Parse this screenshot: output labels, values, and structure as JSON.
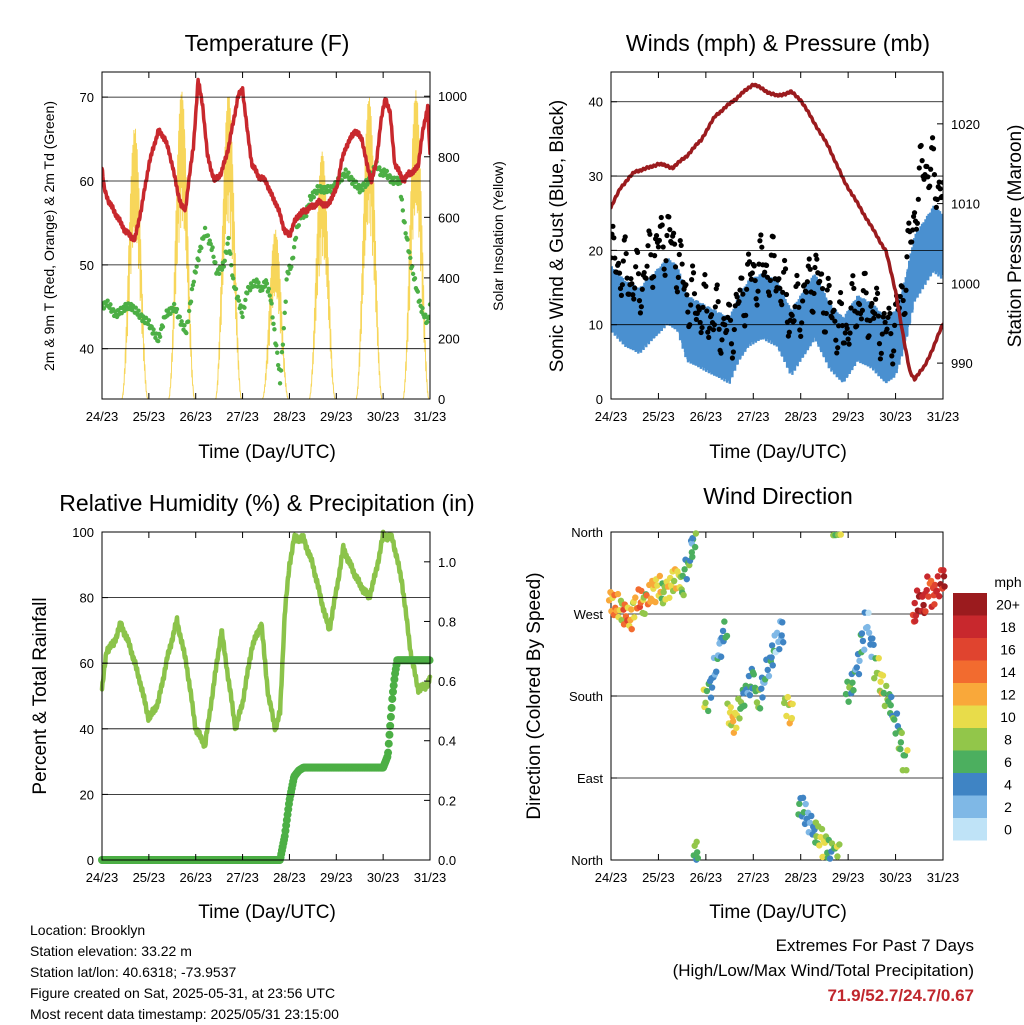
{
  "chart_data": [
    {
      "type": "line",
      "title": "Temperature (F)",
      "xlabel": "Time (Day/UTC)",
      "ylabel": "2m & 9m T (Red, Orange) & 2m Td (Green)",
      "y2label": "Solar Insolation (Yellow)",
      "x_ticks": [
        "24/23",
        "25/23",
        "26/23",
        "27/23",
        "28/23",
        "29/23",
        "30/23",
        "31/23"
      ],
      "xlim_days": [
        0,
        7
      ],
      "ylim": [
        34,
        73
      ],
      "y_ticks": [
        40,
        50,
        60,
        70
      ],
      "y2lim": [
        0,
        1080
      ],
      "y2_ticks": [
        0,
        200,
        400,
        600,
        800,
        1000
      ],
      "grid": "horizontal",
      "series": [
        {
          "name": "2m T",
          "color": "#c8282d",
          "x": [
            0,
            0.05,
            0.15,
            0.3,
            0.5,
            0.7,
            0.85,
            1.0,
            1.1,
            1.2,
            1.35,
            1.5,
            1.6,
            1.7,
            1.78,
            1.85,
            1.95,
            2.05,
            2.15,
            2.25,
            2.4,
            2.55,
            2.7,
            2.8,
            2.9,
            3.0,
            3.1,
            3.2,
            3.35,
            3.5,
            3.6,
            3.7,
            3.8,
            3.9,
            4.0,
            4.1,
            4.2,
            4.35,
            4.5,
            4.65,
            4.8,
            5.0,
            5.1,
            5.2,
            5.4,
            5.55,
            5.65,
            5.75,
            5.85,
            5.95,
            6.05,
            6.15,
            6.25,
            6.35,
            6.45,
            6.55,
            6.65,
            6.75,
            6.85,
            6.95,
            7.0
          ],
          "y": [
            61.5,
            59,
            57.5,
            56,
            54,
            53,
            57,
            62,
            64,
            66,
            65,
            62,
            59,
            57,
            56.5,
            60,
            64,
            72,
            69,
            63,
            60,
            61,
            64,
            67,
            70,
            71,
            66,
            62,
            60.5,
            60,
            58.5,
            57.5,
            56,
            54,
            53.5,
            55,
            56,
            56.5,
            57,
            57.5,
            57,
            59,
            62,
            64,
            66,
            65,
            62,
            60,
            62,
            67,
            70,
            68,
            62,
            61,
            60,
            61,
            61,
            62,
            66,
            69,
            63
          ]
        },
        {
          "name": "2m Td",
          "color": "#4caf45",
          "x": [
            0,
            0.1,
            0.3,
            0.5,
            0.65,
            0.8,
            1.0,
            1.2,
            1.35,
            1.55,
            1.7,
            1.8,
            1.95,
            2.1,
            2.2,
            2.35,
            2.45,
            2.6,
            2.7,
            2.8,
            2.9,
            3.0,
            3.1,
            3.3,
            3.4,
            3.5,
            3.6,
            3.7,
            3.75,
            3.8,
            3.9,
            3.95,
            4.05,
            4.15,
            4.25,
            4.35,
            4.45,
            4.6,
            4.75,
            4.9,
            5.05,
            5.2,
            5.35,
            5.5,
            5.7,
            5.85,
            5.95,
            6.05,
            6.2,
            6.35,
            6.45,
            6.6,
            6.8,
            6.95,
            7.0
          ],
          "y": [
            45,
            45.5,
            44,
            45,
            45,
            44,
            43,
            41,
            44,
            45,
            43,
            42,
            48,
            52,
            54,
            52,
            49,
            50,
            53,
            48,
            46,
            44,
            47,
            48,
            47,
            48,
            46,
            41,
            39,
            36,
            44,
            49,
            50,
            54,
            56,
            56,
            58,
            59,
            59,
            59,
            60,
            61,
            60,
            59,
            60,
            62,
            61,
            61,
            60,
            60,
            55,
            50,
            45,
            43,
            45
          ]
        },
        {
          "name": "Solar Insolation",
          "color": "#f7d65a",
          "axis": "y2",
          "peaks_x": [
            0.7,
            1.7,
            2.7,
            3.7,
            4.7,
            5.7,
            6.7
          ],
          "peaks_y": [
            900,
            1020,
            1010,
            560,
            820,
            1000,
            1020
          ]
        }
      ]
    },
    {
      "type": "line",
      "title": "Winds (mph) & Pressure (mb)",
      "xlabel": "Time (Day/UTC)",
      "ylabel": "Sonic Wind & Gust (Blue, Black)",
      "y2label": "Station Pressure (Maroon)",
      "x_ticks": [
        "24/23",
        "25/23",
        "26/23",
        "27/23",
        "28/23",
        "29/23",
        "30/23",
        "31/23"
      ],
      "xlim_days": [
        0,
        7
      ],
      "ylim": [
        0,
        44
      ],
      "y_ticks": [
        0,
        10,
        20,
        30,
        40
      ],
      "y2lim": [
        985.5,
        1026.5
      ],
      "y2_ticks": [
        990,
        1000,
        1010,
        1020
      ],
      "grid": "horizontal",
      "series": [
        {
          "name": "Sonic Wind",
          "color": "#4a90d0",
          "x": [
            0,
            0.3,
            0.6,
            0.9,
            1.2,
            1.4,
            1.6,
            1.9,
            2.2,
            2.5,
            2.7,
            2.9,
            3.2,
            3.5,
            3.8,
            4.0,
            4.3,
            4.6,
            4.9,
            5.2,
            5.5,
            5.8,
            6.0,
            6.2,
            6.4,
            6.6,
            6.8,
            7.0
          ],
          "y": [
            14,
            12,
            11,
            13,
            15,
            14,
            10,
            9,
            8,
            7,
            10,
            12,
            13,
            12,
            8,
            10,
            13,
            9,
            7,
            10,
            9,
            7,
            8,
            12,
            18,
            20,
            22,
            21
          ]
        },
        {
          "name": "Gust",
          "color": "#000000",
          "x": [
            0,
            0.3,
            0.6,
            0.9,
            1.2,
            1.4,
            1.6,
            1.9,
            2.2,
            2.5,
            2.7,
            2.9,
            3.2,
            3.5,
            3.8,
            4.0,
            4.3,
            4.6,
            4.9,
            5.2,
            5.5,
            5.8,
            6.0,
            6.2,
            6.4,
            6.6,
            6.8,
            7.0
          ],
          "y": [
            19,
            17,
            15,
            20,
            22,
            19,
            14,
            12,
            11,
            9,
            13,
            16,
            18,
            17,
            11,
            13,
            17,
            12,
            9,
            13,
            12,
            9,
            10,
            16,
            25,
            32,
            30,
            28
          ]
        },
        {
          "name": "Station Pressure",
          "color": "#9b1b1e",
          "axis": "y2",
          "x": [
            0,
            0.2,
            0.5,
            0.8,
            1.0,
            1.3,
            1.6,
            1.9,
            2.2,
            2.5,
            2.8,
            3.0,
            3.3,
            3.5,
            3.8,
            4.0,
            4.3,
            4.6,
            4.9,
            5.2,
            5.5,
            5.8,
            6.0,
            6.2,
            6.3,
            6.4,
            6.6,
            6.8,
            7.0
          ],
          "y": [
            1009.5,
            1012,
            1014,
            1014.5,
            1015,
            1014.5,
            1016,
            1018,
            1021,
            1022.5,
            1024,
            1025,
            1024,
            1023.5,
            1024,
            1023,
            1020,
            1017,
            1013,
            1010,
            1007,
            1004,
            999,
            992,
            989,
            988,
            989.5,
            992,
            995
          ]
        }
      ]
    },
    {
      "type": "line",
      "title": "Relative Humidity (%) & Precipitation (in)",
      "xlabel": "Time (Day/UTC)",
      "ylabel": "Percent & Total Rainfall",
      "x_ticks": [
        "24/23",
        "25/23",
        "26/23",
        "27/23",
        "28/23",
        "29/23",
        "30/23",
        "31/23"
      ],
      "xlim_days": [
        0,
        7
      ],
      "ylim": [
        0,
        100
      ],
      "y_ticks": [
        0,
        20,
        40,
        60,
        80,
        100
      ],
      "y2lim": [
        0,
        1.1
      ],
      "y2_ticks": [
        "0.0",
        "0.2",
        "0.4",
        "0.6",
        "0.8",
        "1.0"
      ],
      "grid": "horizontal",
      "series": [
        {
          "name": "Relative Humidity",
          "color": "#8bc34a",
          "x": [
            0,
            0.1,
            0.25,
            0.4,
            0.6,
            0.8,
            1.0,
            1.2,
            1.4,
            1.6,
            1.8,
            2.0,
            2.2,
            2.4,
            2.55,
            2.7,
            2.85,
            3.0,
            3.2,
            3.4,
            3.55,
            3.7,
            3.8,
            3.9,
            4.0,
            4.1,
            4.3,
            4.5,
            4.7,
            4.85,
            5.0,
            5.15,
            5.3,
            5.5,
            5.7,
            5.85,
            6.0,
            6.2,
            6.4,
            6.6,
            6.75,
            6.9,
            7.0
          ],
          "y": [
            52,
            64,
            66,
            72,
            65,
            55,
            43,
            48,
            62,
            73,
            60,
            40,
            35,
            55,
            70,
            55,
            40,
            48,
            65,
            72,
            50,
            40,
            45,
            75,
            90,
            98,
            98,
            90,
            78,
            70,
            82,
            95,
            90,
            84,
            80,
            88,
            99,
            98,
            85,
            62,
            52,
            53,
            55
          ]
        },
        {
          "name": "Total Precipitation",
          "color": "#4caf45",
          "axis": "y2",
          "x": [
            0,
            3.8,
            3.9,
            4.0,
            4.1,
            4.2,
            4.3,
            6.0,
            6.1,
            6.15,
            6.2,
            6.25,
            6.3,
            7.0
          ],
          "y": [
            0,
            0,
            0.08,
            0.2,
            0.28,
            0.3,
            0.31,
            0.31,
            0.35,
            0.45,
            0.55,
            0.62,
            0.67,
            0.67
          ]
        }
      ]
    },
    {
      "type": "scatter",
      "title": "Wind Direction",
      "xlabel": "Time (Day/UTC)",
      "ylabel": "Direction (Colored By Speed)",
      "x_ticks": [
        "24/23",
        "25/23",
        "26/23",
        "27/23",
        "28/23",
        "29/23",
        "30/23",
        "31/23"
      ],
      "y_ticks": [
        "North",
        "East",
        "South",
        "West",
        "North"
      ],
      "ylim_deg": [
        0,
        360
      ],
      "grid": "horizontal",
      "legend_title": "mph",
      "legend_position": "right",
      "colorbar": [
        {
          "label": "20+",
          "color": "#9b1b1e"
        },
        {
          "label": "18",
          "color": "#c8282d"
        },
        {
          "label": "16",
          "color": "#e0442f"
        },
        {
          "label": "14",
          "color": "#f26b2f"
        },
        {
          "label": "12",
          "color": "#f9a83a"
        },
        {
          "label": "10",
          "color": "#e8dc4a"
        },
        {
          "label": "8",
          "color": "#92c64a"
        },
        {
          "label": "6",
          "color": "#4caf5f"
        },
        {
          "label": "4",
          "color": "#3f84c4"
        },
        {
          "label": "2",
          "color": "#7fb8e6"
        },
        {
          "label": "0",
          "color": "#bfe3f7"
        }
      ],
      "series": [
        {
          "name": "Wind Direction",
          "x": [
            0,
            0.1,
            0.2,
            0.3,
            0.4,
            0.5,
            0.6,
            0.7,
            0.8,
            0.9,
            1.0,
            1.1,
            1.2,
            1.3,
            1.4,
            1.5,
            1.6,
            1.7,
            1.75,
            1.8,
            2.0,
            2.1,
            2.2,
            2.3,
            2.4,
            2.5,
            2.6,
            2.7,
            2.8,
            2.9,
            3.0,
            3.1,
            3.2,
            3.3,
            3.4,
            3.5,
            3.6,
            3.7,
            3.8,
            4.0,
            4.1,
            4.2,
            4.3,
            4.4,
            4.5,
            4.6,
            4.7,
            4.8,
            5.0,
            5.1,
            5.2,
            5.3,
            5.4,
            5.5,
            5.6,
            5.7,
            5.8,
            5.9,
            6.0,
            6.1,
            6.2,
            6.4,
            6.5,
            6.6,
            6.7,
            6.8,
            6.9,
            7.0
          ],
          "y": [
            285,
            280,
            275,
            270,
            265,
            278,
            285,
            282,
            290,
            295,
            300,
            292,
            298,
            305,
            310,
            300,
            320,
            340,
            355,
            10,
            175,
            190,
            210,
            235,
            250,
            160,
            150,
            165,
            180,
            190,
            200,
            175,
            190,
            210,
            225,
            240,
            250,
            170,
            160,
            60,
            50,
            40,
            30,
            25,
            15,
            10,
            8,
            5,
            185,
            195,
            215,
            240,
            260,
            235,
            210,
            195,
            180,
            170,
            150,
            130,
            110,
            270,
            285,
            280,
            300,
            290,
            300,
            310
          ],
          "speed": [
            12,
            14,
            10,
            16,
            13,
            11,
            15,
            9,
            14,
            13,
            12,
            8,
            11,
            10,
            12,
            9,
            7,
            6,
            5,
            8,
            9,
            6,
            5,
            4,
            6,
            10,
            12,
            9,
            7,
            5,
            6,
            8,
            4,
            5,
            6,
            3,
            4,
            9,
            12,
            6,
            5,
            4,
            7,
            9,
            10,
            6,
            8,
            10,
            8,
            6,
            4,
            5,
            3,
            5,
            9,
            11,
            8,
            6,
            7,
            8,
            9,
            18,
            20,
            19,
            17,
            18,
            20,
            19
          ]
        }
      ]
    }
  ],
  "info": {
    "location": "Location: Brooklyn",
    "elevation": "Station elevation: 33.22 m",
    "latlon": "Station lat/lon: 40.6318; -73.9537",
    "created": "Figure created on Sat, 2025-05-31, at 23:56 UTC",
    "recent": "Most recent data timestamp: 2025/05/31 23:15:00"
  },
  "extremes": {
    "title": "Extremes For Past 7 Days",
    "subtitle": "(High/Low/Max Wind/Total Precipitation)",
    "values": "71.9/52.7/24.7/0.67"
  }
}
